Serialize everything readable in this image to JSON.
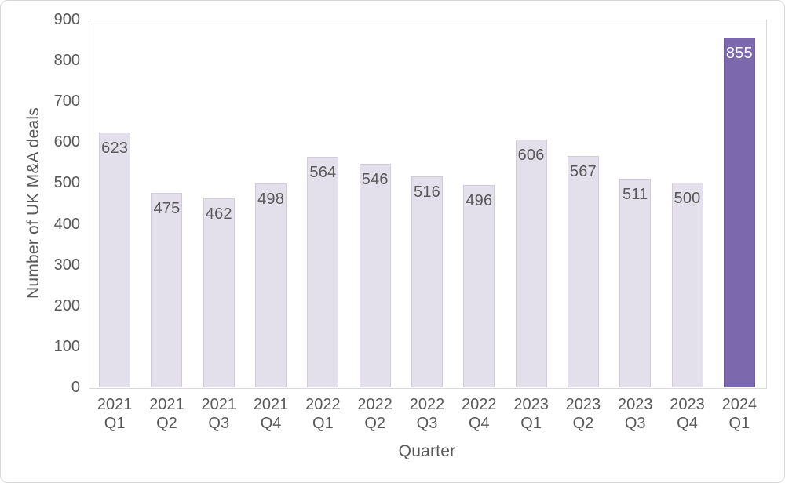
{
  "chart_data": {
    "type": "bar",
    "title": "",
    "xlabel": "Quarter",
    "ylabel": "Number of UK M&A deals",
    "categories": [
      "2021 Q1",
      "2021 Q2",
      "2021 Q3",
      "2021 Q4",
      "2022 Q1",
      "2022 Q2",
      "2022 Q3",
      "2022 Q4",
      "2023 Q1",
      "2023 Q2",
      "2023 Q3",
      "2023 Q4",
      "2024 Q1"
    ],
    "values": [
      623,
      475,
      462,
      498,
      564,
      546,
      516,
      496,
      606,
      567,
      511,
      500,
      855
    ],
    "ylim": [
      0,
      900
    ],
    "ytick_step": 100,
    "highlight_index": 12,
    "grid": false,
    "legend_position": "none"
  },
  "colors": {
    "bar_fill": "#e4e0eb",
    "bar_border": "#d2cbdf",
    "highlight_fill": "#7c69ad",
    "highlight_border": "#6f5c9e",
    "axis_line": "#d9d9d9",
    "text": "#595959",
    "label_text": "#595959",
    "highlight_label_text": "#ffffff"
  }
}
